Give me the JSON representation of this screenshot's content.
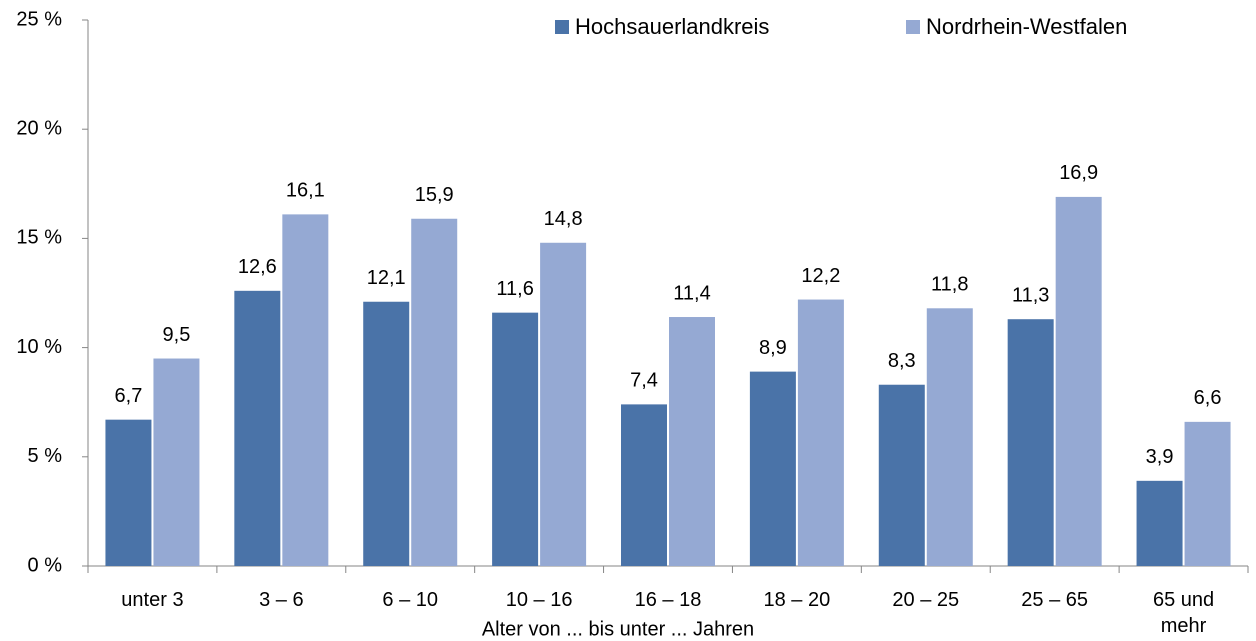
{
  "chart_data": {
    "type": "bar",
    "xlabel": "Alter von ... bis unter ... Jahren",
    "categories": [
      "unter 3",
      "3 – 6",
      "6 – 10",
      "10 – 16",
      "16 – 18",
      "18 – 20",
      "20 – 25",
      "25 – 65",
      "65 und mehr"
    ],
    "series": [
      {
        "name": "Hochsauerlandkreis",
        "color": "#4a73a8",
        "values": [
          6.7,
          12.6,
          12.1,
          11.6,
          7.4,
          8.9,
          8.3,
          11.3,
          3.9
        ],
        "value_labels": [
          "6,7",
          "12,6",
          "12,1",
          "11,6",
          "7,4",
          "8,9",
          "8,3",
          "11,3",
          "3,9"
        ]
      },
      {
        "name": "Nordrhein-Westfalen",
        "color": "#95a9d3",
        "values": [
          9.5,
          16.1,
          15.9,
          14.8,
          11.4,
          12.2,
          11.8,
          16.9,
          6.6
        ],
        "value_labels": [
          "9,5",
          "16,1",
          "15,9",
          "14,8",
          "11,4",
          "12,2",
          "11,8",
          "16,9",
          "6,6"
        ]
      }
    ],
    "ylim": [
      0,
      25
    ],
    "yticks": [
      {
        "value": 0,
        "label": "0 %"
      },
      {
        "value": 5,
        "label": "5 %"
      },
      {
        "value": 10,
        "label": "10 %"
      },
      {
        "value": 15,
        "label": "15 %"
      },
      {
        "value": 20,
        "label": "20 %"
      },
      {
        "value": 25,
        "label": "25 %"
      }
    ],
    "legend": "top-right"
  }
}
